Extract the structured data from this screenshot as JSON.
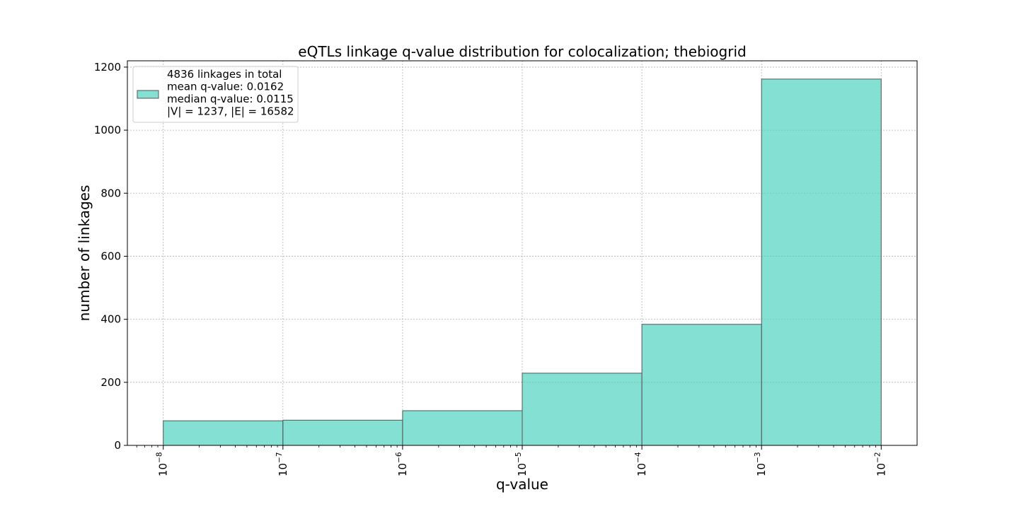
{
  "chart_data": {
    "type": "bar",
    "title": "eQTLs linkage q-value distribution for colocalization; thebiogrid",
    "xlabel": "q-value",
    "ylabel": "number of linkages",
    "x_scale": "log",
    "x_tick_labels": [
      {
        "base": "10",
        "exp": "−8"
      },
      {
        "base": "10",
        "exp": "−7"
      },
      {
        "base": "10",
        "exp": "−6"
      },
      {
        "base": "10",
        "exp": "−5"
      },
      {
        "base": "10",
        "exp": "−4"
      },
      {
        "base": "10",
        "exp": "−3"
      },
      {
        "base": "10",
        "exp": "−2"
      }
    ],
    "y_ticks": [
      0,
      200,
      400,
      600,
      800,
      1000,
      1200
    ],
    "ylim": [
      0,
      1220
    ],
    "bin_edges": [
      1e-08,
      1e-07,
      1e-06,
      1e-05,
      0.0001,
      0.001,
      0.01
    ],
    "values": [
      78,
      80,
      110,
      229,
      384,
      1162
    ],
    "grid": true,
    "legend": {
      "placement": "upper-left",
      "lines": [
        "4836 linkages in total",
        "mean q-value: 0.0162",
        "median q-value: 0.0115",
        "|V| = 1237, |E| = 16582"
      ]
    },
    "colors": {
      "bar_fill": "#40d0bc",
      "bar_fill_opacity": 0.65,
      "bar_edge": "#555555",
      "grid": "#b0b0b0"
    }
  }
}
